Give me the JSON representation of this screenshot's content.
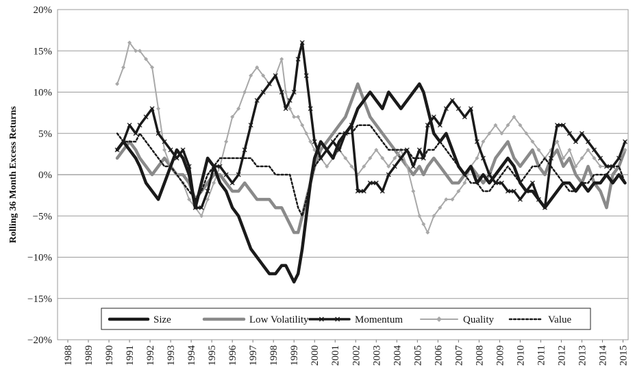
{
  "chart_data": {
    "type": "line",
    "title": "",
    "xlabel": "",
    "ylabel": "Rolling 36 Month Excess Returns",
    "xlim": [
      1988,
      2015.75
    ],
    "ylim": [
      -20,
      20
    ],
    "x_ticks": [
      "1988",
      "1989",
      "1990",
      "1991",
      "1992",
      "1993",
      "1994",
      "1995",
      "1996",
      "1997",
      "1998",
      "1999",
      "2000",
      "2001",
      "2002",
      "2003",
      "2004",
      "2005",
      "2006",
      "2007",
      "2008",
      "2009",
      "2010",
      "2011",
      "2012",
      "2013",
      "2014",
      "2015"
    ],
    "y_ticks": [
      "20%",
      "15%",
      "10%",
      "5%",
      "0%",
      "−5%",
      "−10%",
      "−15%",
      "−20%"
    ],
    "grid": "horizontal",
    "legend_position": "bottom-inside",
    "series": [
      {
        "name": "Size",
        "color": "#1a1a1a",
        "style": "thick",
        "x": [
          1990.9,
          1991.2,
          1991.5,
          1991.8,
          1992.0,
          1992.3,
          1992.6,
          1992.9,
          1993.2,
          1993.5,
          1993.8,
          1994.1,
          1994.4,
          1994.7,
          1995.0,
          1995.3,
          1995.6,
          1995.9,
          1996.2,
          1996.5,
          1996.8,
          1997.1,
          1997.4,
          1997.7,
          1998.0,
          1998.3,
          1998.6,
          1998.9,
          1999.1,
          1999.3,
          1999.5,
          1999.7,
          1999.9,
          2000.1,
          2000.3,
          2000.5,
          2000.8,
          2001.1,
          2001.4,
          2001.7,
          2002.0,
          2002.3,
          2002.6,
          2002.9,
          2003.2,
          2003.5,
          2003.8,
          2004.1,
          2004.4,
          2004.7,
          2005.0,
          2005.3,
          2005.6,
          2005.8,
          2006.0,
          2006.3,
          2006.6,
          2006.9,
          2007.2,
          2007.5,
          2007.8,
          2008.1,
          2008.4,
          2008.7,
          2009.0,
          2009.3,
          2009.6,
          2009.9,
          2010.2,
          2010.5,
          2010.8,
          2011.1,
          2011.4,
          2011.7,
          2012.0,
          2012.3,
          2012.6,
          2012.9,
          2013.2,
          2013.5,
          2013.8,
          2014.1,
          2014.4,
          2014.7,
          2015.0,
          2015.3,
          2015.6
        ],
        "y": [
          3,
          4,
          3,
          2,
          1,
          -1,
          -2,
          -3,
          -1,
          1,
          3,
          2,
          0,
          -4,
          -1,
          2,
          1,
          -1,
          -2,
          -4,
          -5,
          -7,
          -9,
          -10,
          -11,
          -12,
          -12,
          -11,
          -11,
          -12,
          -13,
          -12,
          -9,
          -5,
          -1,
          2,
          4,
          3,
          2,
          4,
          5,
          6,
          8,
          9,
          10,
          9,
          8,
          10,
          9,
          8,
          9,
          10,
          11,
          10,
          8,
          5,
          4,
          5,
          3,
          1,
          0,
          1,
          -1,
          0,
          -1,
          0,
          1,
          2,
          1,
          -1,
          -2,
          -2,
          -3,
          -4,
          -3,
          -2,
          -1,
          -1,
          -2,
          -1,
          -2,
          -1,
          -1,
          0,
          -1,
          0,
          -1
        ]
      },
      {
        "name": "Low Volatility",
        "color": "#8a8a8a",
        "style": "thick",
        "x": [
          1990.9,
          1991.2,
          1991.5,
          1991.8,
          1992.0,
          1992.3,
          1992.6,
          1992.9,
          1993.2,
          1993.5,
          1993.8,
          1994.1,
          1994.4,
          1994.7,
          1995.0,
          1995.3,
          1995.6,
          1995.9,
          1996.2,
          1996.5,
          1996.8,
          1997.1,
          1997.4,
          1997.7,
          1998.0,
          1998.3,
          1998.6,
          1998.9,
          1999.1,
          1999.3,
          1999.5,
          1999.7,
          1999.9,
          2000.1,
          2000.3,
          2000.5,
          2000.8,
          2001.1,
          2001.4,
          2001.7,
          2002.0,
          2002.3,
          2002.6,
          2002.9,
          2003.2,
          2003.5,
          2003.8,
          2004.1,
          2004.4,
          2004.7,
          2005.0,
          2005.3,
          2005.6,
          2005.8,
          2006.0,
          2006.3,
          2006.6,
          2006.9,
          2007.2,
          2007.5,
          2007.8,
          2008.1,
          2008.4,
          2008.7,
          2009.0,
          2009.3,
          2009.6,
          2009.9,
          2010.2,
          2010.5,
          2010.8,
          2011.1,
          2011.4,
          2011.7,
          2012.0,
          2012.3,
          2012.6,
          2012.9,
          2013.2,
          2013.5,
          2013.8,
          2014.1,
          2014.4,
          2014.7,
          2015.0,
          2015.3,
          2015.6
        ],
        "y": [
          2,
          3,
          4,
          3,
          2,
          1,
          0,
          1,
          2,
          1,
          0,
          0,
          -1,
          -3,
          -2,
          -1,
          0,
          0,
          -1,
          -2,
          -2,
          -1,
          -2,
          -3,
          -3,
          -3,
          -4,
          -4,
          -5,
          -6,
          -7,
          -7,
          -5,
          -3,
          -1,
          1,
          3,
          4,
          5,
          6,
          7,
          9,
          11,
          9,
          7,
          6,
          5,
          4,
          3,
          2,
          1,
          0,
          1,
          0,
          1,
          2,
          1,
          0,
          -1,
          -1,
          0,
          1,
          0,
          -1,
          0,
          2,
          3,
          4,
          2,
          1,
          2,
          3,
          1,
          0,
          2,
          3,
          1,
          2,
          0,
          -1,
          1,
          -1,
          -2,
          -4,
          0,
          1,
          3
        ]
      },
      {
        "name": "Momentum",
        "color": "#1a1a1a",
        "style": "thick-x",
        "x": [
          1990.9,
          1991.2,
          1991.5,
          1991.8,
          1992.0,
          1992.3,
          1992.6,
          1992.9,
          1993.2,
          1993.5,
          1993.8,
          1994.1,
          1994.4,
          1994.7,
          1995.0,
          1995.3,
          1995.6,
          1995.9,
          1996.2,
          1996.5,
          1996.8,
          1997.1,
          1997.4,
          1997.7,
          1998.0,
          1998.3,
          1998.6,
          1998.9,
          1999.1,
          1999.3,
          1999.5,
          1999.7,
          1999.9,
          2000.1,
          2000.3,
          2000.5,
          2000.8,
          2001.1,
          2001.4,
          2001.7,
          2002.0,
          2002.3,
          2002.6,
          2002.9,
          2003.2,
          2003.5,
          2003.8,
          2004.1,
          2004.4,
          2004.7,
          2005.0,
          2005.3,
          2005.6,
          2005.8,
          2006.0,
          2006.3,
          2006.6,
          2006.9,
          2007.2,
          2007.5,
          2007.8,
          2008.1,
          2008.4,
          2008.7,
          2009.0,
          2009.3,
          2009.6,
          2009.9,
          2010.2,
          2010.5,
          2010.8,
          2011.1,
          2011.4,
          2011.7,
          2012.0,
          2012.3,
          2012.6,
          2012.9,
          2013.2,
          2013.5,
          2013.8,
          2014.1,
          2014.4,
          2014.7,
          2015.0,
          2015.3,
          2015.6
        ],
        "y": [
          3,
          4,
          6,
          5,
          6,
          7,
          8,
          5,
          4,
          3,
          2,
          3,
          1,
          -4,
          -4,
          -2,
          1,
          1,
          0,
          -1,
          0,
          3,
          6,
          9,
          10,
          11,
          12,
          10,
          8,
          9,
          10,
          14,
          16,
          12,
          8,
          4,
          2,
          3,
          4,
          3,
          5,
          6,
          -2,
          -2,
          -1,
          -1,
          -2,
          0,
          1,
          2,
          3,
          1,
          3,
          2,
          6,
          7,
          6,
          8,
          9,
          8,
          7,
          8,
          4,
          2,
          0,
          -1,
          -1,
          -2,
          -2,
          -3,
          -2,
          -1,
          -3,
          -4,
          2,
          6,
          6,
          5,
          4,
          5,
          4,
          3,
          2,
          1,
          1,
          2,
          4
        ]
      },
      {
        "name": "Quality",
        "color": "#a8a8a8",
        "style": "thin-diamond",
        "x": [
          1990.9,
          1991.2,
          1991.5,
          1991.8,
          1992.0,
          1992.3,
          1992.6,
          1992.9,
          1993.2,
          1993.5,
          1993.8,
          1994.1,
          1994.4,
          1994.7,
          1995.0,
          1995.3,
          1995.6,
          1995.9,
          1996.2,
          1996.5,
          1996.8,
          1997.1,
          1997.4,
          1997.7,
          1998.0,
          1998.3,
          1998.6,
          1998.9,
          1999.1,
          1999.3,
          1999.5,
          1999.7,
          1999.9,
          2000.1,
          2000.3,
          2000.5,
          2000.8,
          2001.1,
          2001.4,
          2001.7,
          2002.0,
          2002.3,
          2002.6,
          2002.9,
          2003.2,
          2003.5,
          2003.8,
          2004.1,
          2004.4,
          2004.7,
          2005.0,
          2005.3,
          2005.6,
          2005.8,
          2006.0,
          2006.3,
          2006.6,
          2006.9,
          2007.2,
          2007.5,
          2007.8,
          2008.1,
          2008.4,
          2008.7,
          2009.0,
          2009.3,
          2009.6,
          2009.9,
          2010.2,
          2010.5,
          2010.8,
          2011.1,
          2011.4,
          2011.7,
          2012.0,
          2012.3,
          2012.6,
          2012.9,
          2013.2,
          2013.5,
          2013.8,
          2014.1,
          2014.4,
          2014.7,
          2015.0,
          2015.3,
          2015.6
        ],
        "y": [
          11,
          13,
          16,
          15,
          15,
          14,
          13,
          8,
          3,
          1,
          0,
          -1,
          -3,
          -4,
          -5,
          -3,
          -1,
          1,
          4,
          7,
          8,
          10,
          12,
          13,
          12,
          11,
          12,
          14,
          10,
          8,
          7,
          7,
          6,
          5,
          4,
          3,
          2,
          1,
          2,
          3,
          2,
          1,
          0,
          1,
          2,
          3,
          2,
          1,
          2,
          3,
          1,
          -2,
          -5,
          -6,
          -7,
          -5,
          -4,
          -3,
          -3,
          -2,
          -1,
          1,
          2,
          4,
          5,
          6,
          5,
          6,
          7,
          6,
          5,
          4,
          3,
          2,
          3,
          4,
          2,
          3,
          1,
          2,
          3,
          2,
          1,
          1,
          1,
          2,
          3
        ]
      },
      {
        "name": "Value",
        "color": "#1a1a1a",
        "style": "dotted",
        "x": [
          1990.9,
          1991.2,
          1991.5,
          1991.8,
          1992.0,
          1992.3,
          1992.6,
          1992.9,
          1993.2,
          1993.5,
          1993.8,
          1994.1,
          1994.4,
          1994.7,
          1995.0,
          1995.3,
          1995.6,
          1995.9,
          1996.2,
          1996.5,
          1996.8,
          1997.1,
          1997.4,
          1997.7,
          1998.0,
          1998.3,
          1998.6,
          1998.9,
          1999.1,
          1999.3,
          1999.5,
          1999.7,
          1999.9,
          2000.1,
          2000.3,
          2000.5,
          2000.8,
          2001.1,
          2001.4,
          2001.7,
          2002.0,
          2002.3,
          2002.6,
          2002.9,
          2003.2,
          2003.5,
          2003.8,
          2004.1,
          2004.4,
          2004.7,
          2005.0,
          2005.3,
          2005.6,
          2005.8,
          2006.0,
          2006.3,
          2006.6,
          2006.9,
          2007.2,
          2007.5,
          2007.8,
          2008.1,
          2008.4,
          2008.7,
          2009.0,
          2009.3,
          2009.6,
          2009.9,
          2010.2,
          2010.5,
          2010.8,
          2011.1,
          2011.4,
          2011.7,
          2012.0,
          2012.3,
          2012.6,
          2012.9,
          2013.2,
          2013.5,
          2013.8,
          2014.1,
          2014.4,
          2014.7,
          2015.0,
          2015.3,
          2015.6
        ],
        "y": [
          5,
          4,
          4,
          4,
          5,
          4,
          3,
          2,
          1,
          1,
          0,
          -1,
          -2,
          -3,
          -2,
          0,
          1,
          2,
          2,
          2,
          2,
          2,
          2,
          1,
          1,
          1,
          0,
          0,
          0,
          0,
          -2,
          -4,
          -5,
          -3,
          -1,
          1,
          2,
          3,
          4,
          5,
          5,
          5,
          6,
          6,
          6,
          5,
          4,
          3,
          3,
          3,
          3,
          2,
          2,
          2,
          3,
          3,
          4,
          3,
          2,
          1,
          0,
          -1,
          -1,
          -2,
          -2,
          -1,
          0,
          1,
          0,
          -1,
          0,
          1,
          1,
          2,
          1,
          0,
          -1,
          -2,
          -2,
          -1,
          -1,
          0,
          0,
          0,
          1,
          1,
          -1
        ]
      }
    ]
  }
}
